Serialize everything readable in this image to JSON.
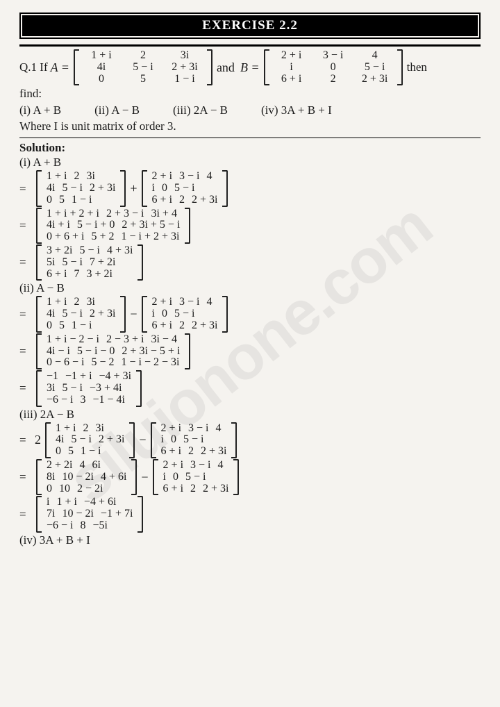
{
  "banner": "EXERCISE 2.2",
  "watermark": "siluionone.com",
  "question": {
    "prefix": "Q.1 If",
    "A_label": "A =",
    "B_label": "B =",
    "and": "and",
    "then": "then",
    "find": "find:",
    "parts": {
      "i": "(i) A + B",
      "ii": "(ii) A − B",
      "iii": "(iii) 2A − B",
      "iv": "(iv) 3A + B + I"
    },
    "where": "Where I is unit matrix of order 3.",
    "A": [
      [
        "1 + i",
        "2",
        "3i"
      ],
      [
        "4i",
        "5 − i",
        "2 + 3i"
      ],
      [
        "0",
        "5",
        "1 − i"
      ]
    ],
    "B": [
      [
        "2 + i",
        "3 − i",
        "4"
      ],
      [
        "i",
        "0",
        "5 − i"
      ],
      [
        "6 + i",
        "2",
        "2 + 3i"
      ]
    ]
  },
  "solution_label": "Solution:",
  "eqs": "=",
  "parts": {
    "i": {
      "label": "(i) A + B",
      "step1": {
        "L": [
          [
            "1 + i",
            "2",
            "3i"
          ],
          [
            "4i",
            "5 − i",
            "2 + 3i"
          ],
          [
            "0",
            "5",
            "1 − i"
          ]
        ],
        "op": "+",
        "R": [
          [
            "2 + i",
            "3 − i",
            "4"
          ],
          [
            "i",
            "0",
            "5 − i"
          ],
          [
            "6 + i",
            "2",
            "2 + 3i"
          ]
        ]
      },
      "step2": [
        [
          "1 + i + 2 + i",
          "2 + 3 − i",
          "3i + 4"
        ],
        [
          "4i + i",
          "5 − i + 0",
          "2 + 3i + 5 − i"
        ],
        [
          "0 + 6 + i",
          "5 + 2",
          "1 − i + 2 + 3i"
        ]
      ],
      "step3": [
        [
          "3 + 2i",
          "5 − i",
          "4 + 3i"
        ],
        [
          "5i",
          "5 − i",
          "7 + 2i"
        ],
        [
          "6 + i",
          "7",
          "3 + 2i"
        ]
      ]
    },
    "ii": {
      "label": "(ii) A − B",
      "step1": {
        "L": [
          [
            "1 + i",
            "2",
            "3i"
          ],
          [
            "4i",
            "5 − i",
            "2 + 3i"
          ],
          [
            "0",
            "5",
            "1 − i"
          ]
        ],
        "op": "−",
        "R": [
          [
            "2 + i",
            "3 − i",
            "4"
          ],
          [
            "i",
            "0",
            "5 − i"
          ],
          [
            "6 + i",
            "2",
            "2 + 3i"
          ]
        ]
      },
      "step2": [
        [
          "1 + i − 2 − i",
          "2 − 3 + i",
          "3i − 4"
        ],
        [
          "4i − i",
          "5 − i − 0",
          "2 + 3i − 5 + i"
        ],
        [
          "0 − 6 − i",
          "5 − 2",
          "1 − i − 2 − 3i"
        ]
      ],
      "step3": [
        [
          "−1",
          "−1 + i",
          "−4 + 3i"
        ],
        [
          "3i",
          "5 − i",
          "−3 + 4i"
        ],
        [
          "−6 − i",
          "3",
          "−1 − 4i"
        ]
      ]
    },
    "iii": {
      "label": "(iii) 2A − B",
      "scalar": "2",
      "step1": {
        "L": [
          [
            "1 + i",
            "2",
            "3i"
          ],
          [
            "4i",
            "5 − i",
            "2 + 3i"
          ],
          [
            "0",
            "5",
            "1 − i"
          ]
        ],
        "op": "−",
        "R": [
          [
            "2 + i",
            "3 − i",
            "4"
          ],
          [
            "i",
            "0",
            "5 − i"
          ],
          [
            "6 + i",
            "2",
            "2 + 3i"
          ]
        ]
      },
      "step2": {
        "L": [
          [
            "2 + 2i",
            "4",
            "6i"
          ],
          [
            "8i",
            "10 − 2i",
            "4 + 6i"
          ],
          [
            "0",
            "10",
            "2 − 2i"
          ]
        ],
        "op": "−",
        "R": [
          [
            "2 + i",
            "3 − i",
            "4"
          ],
          [
            "i",
            "0",
            "5 − i"
          ],
          [
            "6 + i",
            "2",
            "2 + 3i"
          ]
        ]
      },
      "step3": [
        [
          "i",
          "1 + i",
          "−4 + 6i"
        ],
        [
          "7i",
          "10 − 2i",
          "−1 + 7i"
        ],
        [
          "−6 − i",
          "8",
          "−5i"
        ]
      ]
    },
    "iv": {
      "label": "(iv) 3A + B + I"
    }
  }
}
